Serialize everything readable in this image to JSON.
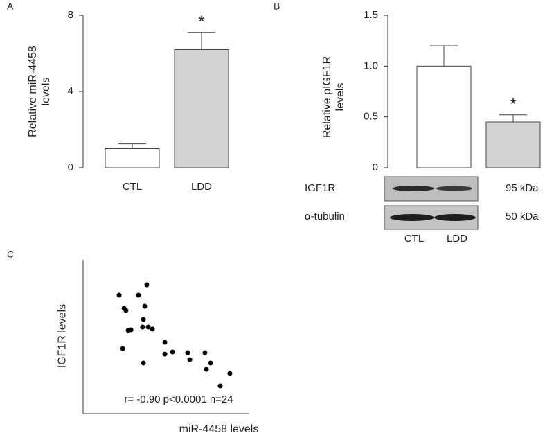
{
  "chart_data": [
    {
      "type": "bar",
      "panel": "A",
      "categories": [
        "CTL",
        "LDD"
      ],
      "values": [
        1,
        6.2
      ],
      "errors": [
        0.25,
        0.9
      ],
      "colors": [
        "#ffffff",
        "#d3d3d3"
      ],
      "ylim": [
        0,
        8
      ],
      "yticks": [
        0,
        4,
        8
      ],
      "ylabel": "Relative miR-4458 levels",
      "annotations": [
        {
          "text": "*",
          "category": 1
        }
      ]
    },
    {
      "type": "bar",
      "panel": "B",
      "categories": [
        "CTL",
        "LDD"
      ],
      "values": [
        1.0,
        0.45
      ],
      "errors": [
        0.2,
        0.07
      ],
      "colors": [
        "#ffffff",
        "#d3d3d3"
      ],
      "ylim": [
        0,
        1.5
      ],
      "yticks": [
        0,
        0.5,
        {
          "value": 1,
          "label": "1.0"
        },
        1.5
      ],
      "ylabel": "Relative pIGF1R levels",
      "annotations": [
        {
          "text": "*",
          "category": 1
        }
      ],
      "blot": {
        "rows": [
          {
            "label": "IGF1R",
            "size": "95 kDa"
          },
          {
            "label": "α-tubulin",
            "size": "50 kDa"
          }
        ],
        "lanes": [
          "CTL",
          "LDD"
        ]
      }
    },
    {
      "type": "scatter",
      "panel": "C",
      "xlabel": "miR-4458 levels",
      "ylabel": "IGF1R levels",
      "annotation": "r= -0.90 p<0.0001 n=24",
      "color": "#000000",
      "xlim": [
        0,
        100
      ],
      "ylim": [
        0,
        100
      ],
      "x": [
        21.7,
        38.3,
        33.3,
        24.6,
        25.8,
        37.1,
        27.1,
        28.8,
        36.3,
        35.8,
        39.2,
        41.7,
        23.8,
        49.2,
        53.8,
        49.2,
        62.9,
        64.2,
        73.3,
        76.7,
        74.2,
        36.3,
        88.3,
        82.5
      ],
      "y": [
        77.0,
        83.8,
        77.0,
        68.5,
        67.1,
        69.8,
        54.1,
        54.5,
        61.3,
        56.3,
        56.3,
        55.0,
        42.3,
        46.4,
        40.1,
        38.7,
        39.6,
        35.1,
        39.6,
        32.9,
        28.8,
        32.9,
        26.1,
        18.0
      ]
    }
  ]
}
